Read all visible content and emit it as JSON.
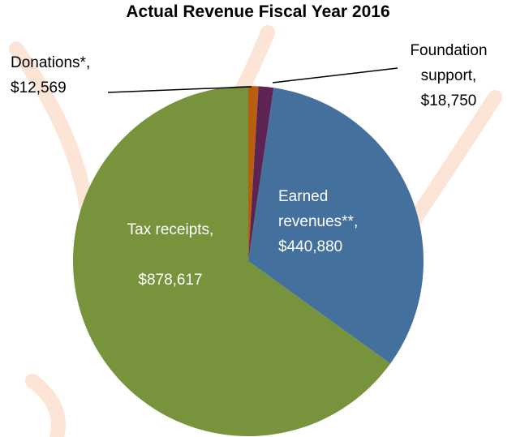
{
  "chart_data": {
    "type": "pie",
    "title": "Actual Revenue Fiscal Year 2016",
    "categories": [
      "Donations*,",
      "Foundation support,",
      "Earned revenues**,",
      "Tax receipts,"
    ],
    "values": [
      12569,
      18750,
      440880,
      878617
    ],
    "value_labels": [
      "$12,569",
      "$18,750",
      "$440,880",
      "$878,617"
    ],
    "colors": [
      "#b8600f",
      "#5c2353",
      "#43709d",
      "#77933c"
    ]
  }
}
